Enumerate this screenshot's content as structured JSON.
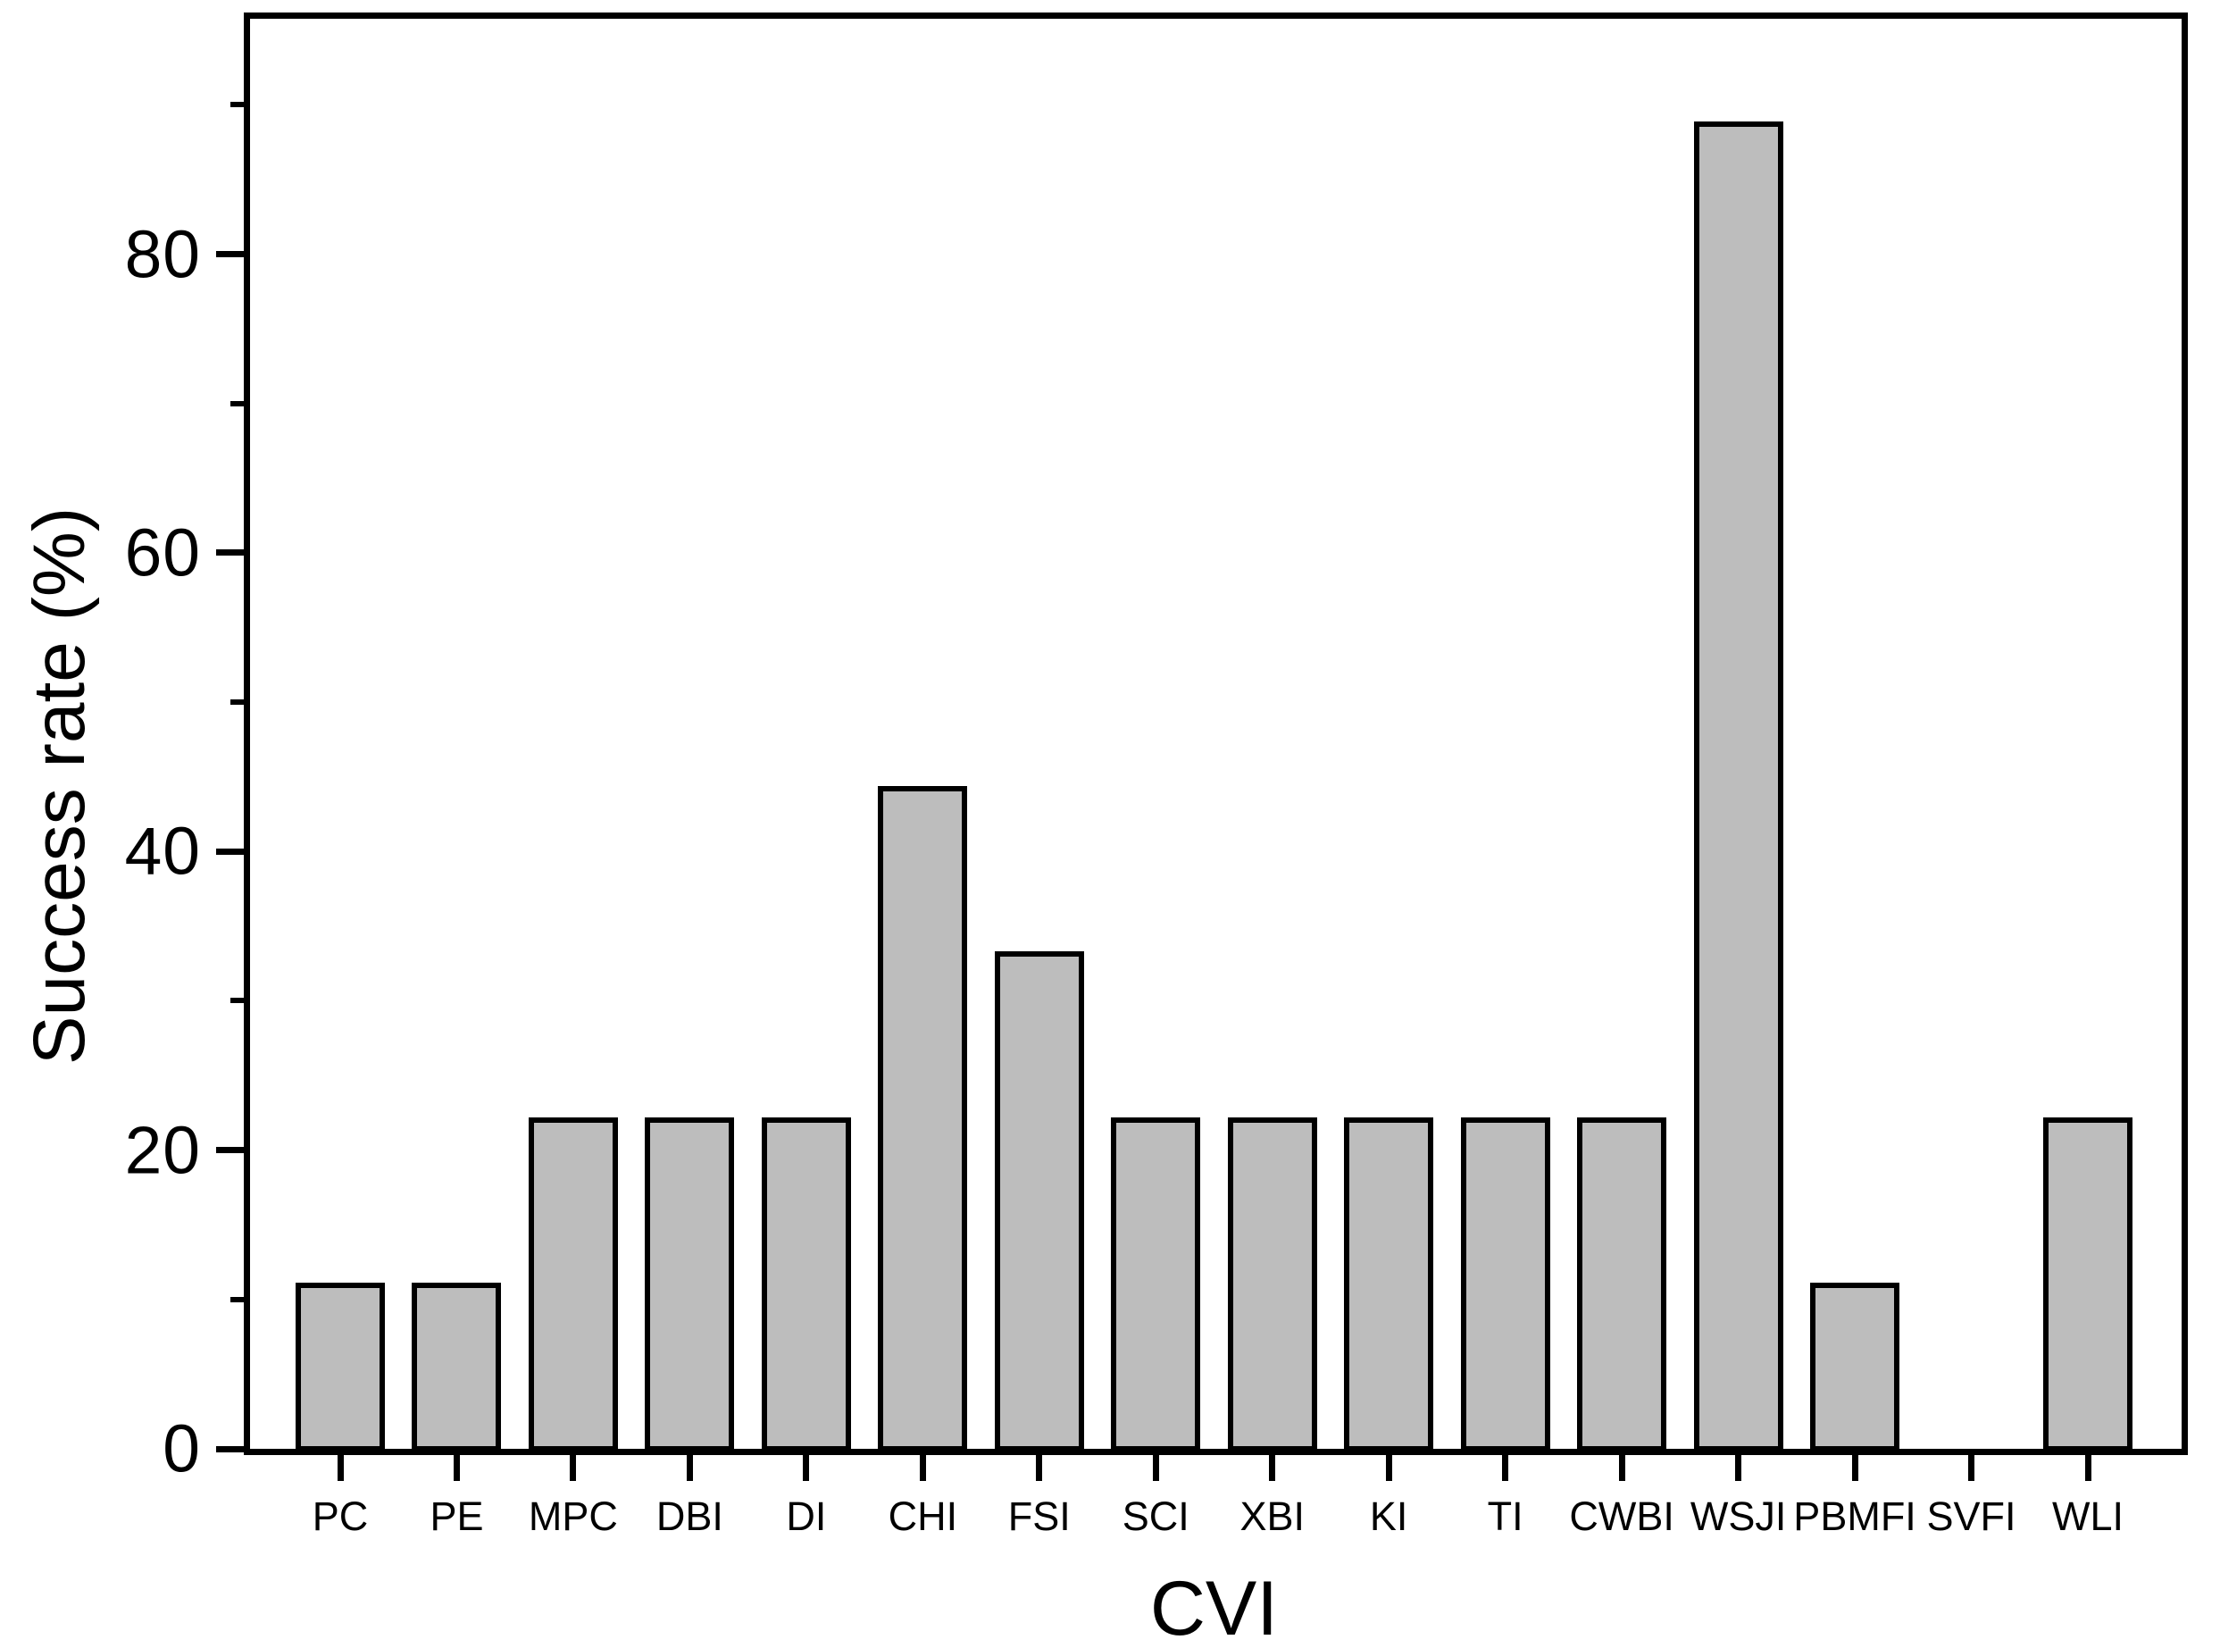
{
  "figure": {
    "background": "#ffffff",
    "text_color": "#000000"
  },
  "chart_data": {
    "type": "bar",
    "title": "",
    "xlabel": "CVI",
    "ylabel": "Success rate (%)",
    "categories": [
      "PC",
      "PE",
      "MPC",
      "DBI",
      "DI",
      "CHI",
      "FSI",
      "SCI",
      "XBI",
      "KI",
      "TI",
      "CWBI",
      "WSJI",
      "PBMFI",
      "SVFI",
      "WLI"
    ],
    "values": [
      11.1,
      11.1,
      22.2,
      22.2,
      22.2,
      44.4,
      33.3,
      22.2,
      22.2,
      22.2,
      22.2,
      22.2,
      88.9,
      11.1,
      0,
      22.2
    ],
    "ylim": [
      0,
      96
    ],
    "ytick_major": [
      0,
      20,
      40,
      60,
      80
    ],
    "ytick_minor": [
      10,
      30,
      50,
      70,
      90
    ],
    "grid": false,
    "legend": false,
    "bar_fill": "#bdbdbd",
    "bar_border": "#000000",
    "frame_color": "#000000"
  }
}
